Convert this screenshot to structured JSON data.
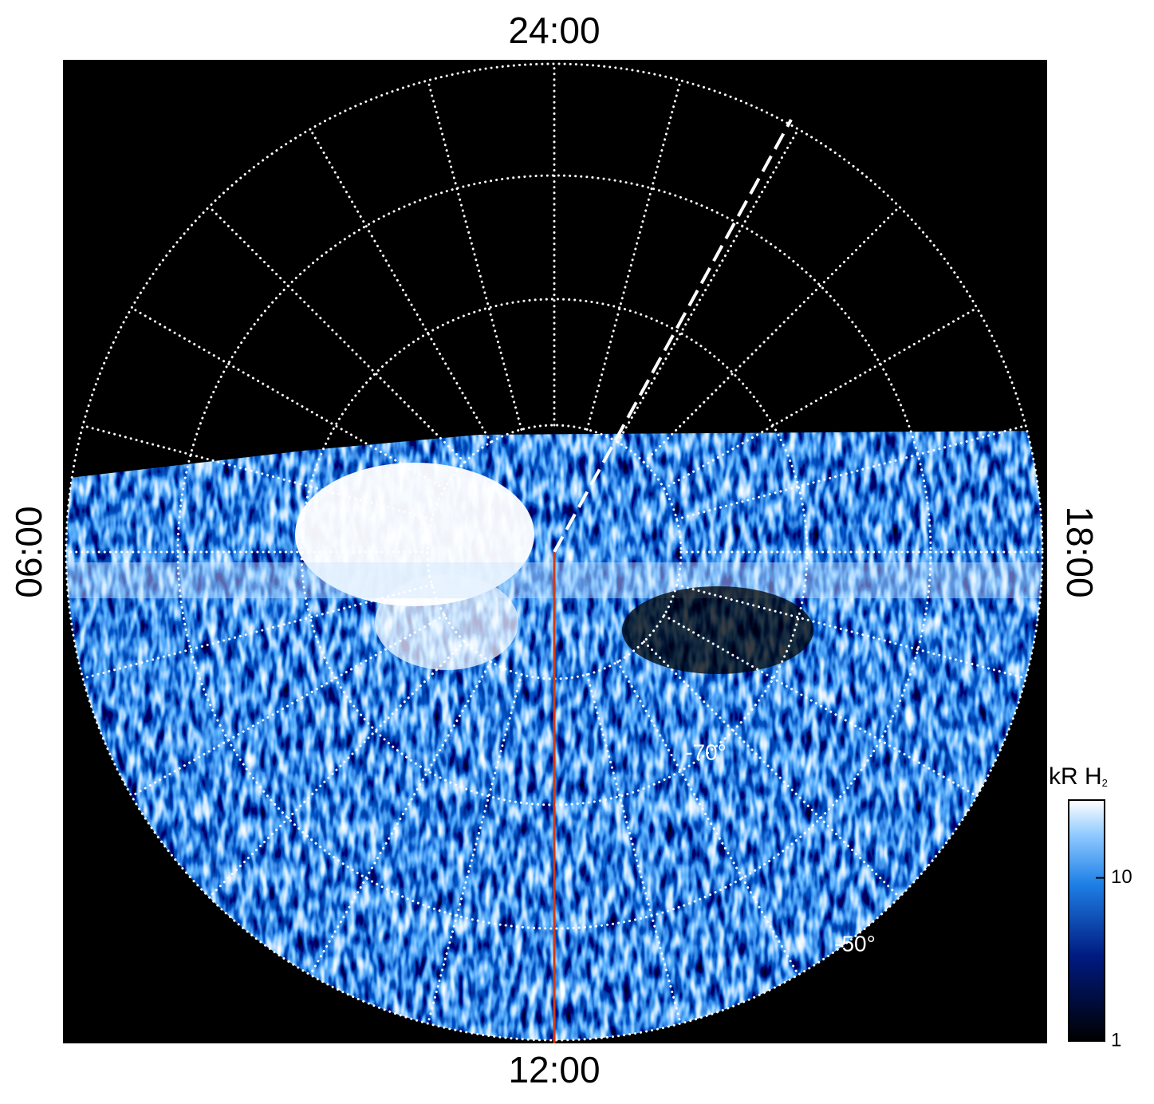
{
  "labels": {
    "top": "24:00",
    "bottom": "12:00",
    "left": "06:00",
    "right": "18:00"
  },
  "latitude_labels": [
    "-70°",
    "-50°"
  ],
  "colorbar": {
    "title": "kR H",
    "title_subscript": "2",
    "scale": "log",
    "range": [
      1,
      30
    ],
    "ticks": [
      1,
      10
    ]
  }
}
